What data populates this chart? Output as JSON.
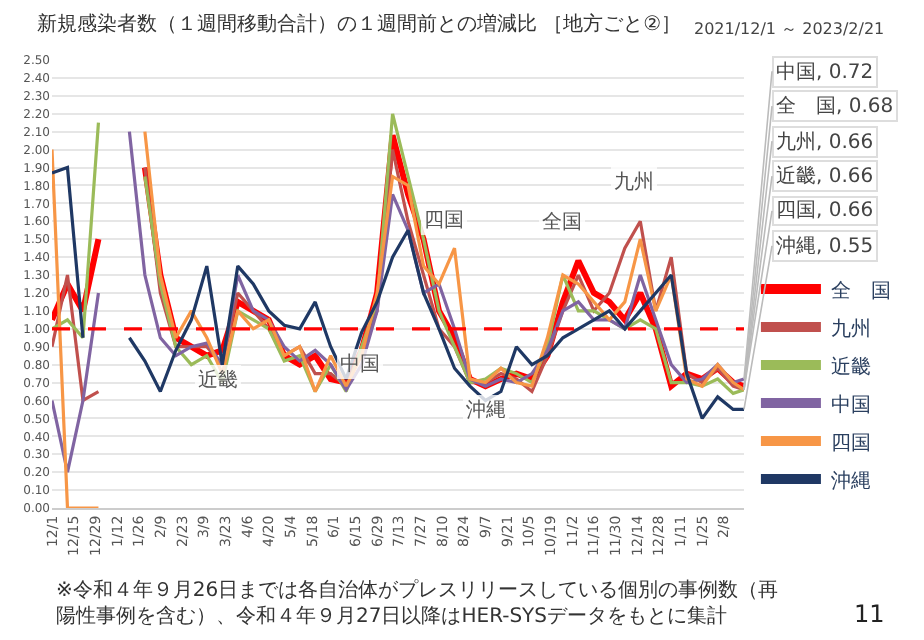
{
  "chart_data": {
    "type": "line",
    "title": "新規感染者数（１週間移動合計）の１週間前との増減比 ［地方ごと②］",
    "subtitle": "2021/12/1 ～ 2023/2/21",
    "x": [
      "2021-12-01",
      "2021-12-11",
      "2021-12-21",
      "2021-12-31",
      "2022-01-10",
      "2022-01-20",
      "2022-01-30",
      "2022-02-09",
      "2022-02-19",
      "2022-03-01",
      "2022-03-11",
      "2022-03-21",
      "2022-03-31",
      "2022-04-10",
      "2022-04-20",
      "2022-04-30",
      "2022-05-10",
      "2022-05-20",
      "2022-05-30",
      "2022-06-09",
      "2022-06-19",
      "2022-06-29",
      "2022-07-09",
      "2022-07-19",
      "2022-07-29",
      "2022-08-08",
      "2022-08-18",
      "2022-08-28",
      "2022-09-07",
      "2022-09-17",
      "2022-09-27",
      "2022-10-07",
      "2022-10-17",
      "2022-10-27",
      "2022-11-06",
      "2022-11-16",
      "2022-11-26",
      "2022-12-06",
      "2022-12-16",
      "2022-12-26",
      "2023-01-05",
      "2023-01-15",
      "2023-01-25",
      "2023-02-04",
      "2023-02-14",
      "2023-02-21"
    ],
    "series": [
      {
        "name": "全　国",
        "color": "#ff0000",
        "values": [
          1.05,
          1.25,
          1.1,
          1.5,
          null,
          null,
          1.9,
          1.3,
          0.95,
          0.9,
          0.85,
          0.88,
          1.15,
          1.1,
          1.05,
          0.85,
          0.8,
          0.85,
          0.72,
          0.7,
          0.88,
          1.2,
          2.08,
          1.75,
          1.5,
          1.1,
          0.95,
          0.72,
          0.68,
          0.72,
          0.75,
          0.72,
          0.85,
          1.15,
          1.38,
          1.2,
          1.15,
          1.05,
          1.2,
          1.0,
          0.68,
          0.75,
          0.72,
          0.78,
          0.7,
          0.68
        ]
      },
      {
        "name": "九州",
        "color": "#c0504d",
        "values": [
          0.9,
          1.3,
          0.6,
          0.65,
          null,
          null,
          1.9,
          1.2,
          0.9,
          0.9,
          0.9,
          0.8,
          1.2,
          1.1,
          1.0,
          0.85,
          0.9,
          0.75,
          0.75,
          0.68,
          0.88,
          1.1,
          2.0,
          1.6,
          1.3,
          1.0,
          0.9,
          0.7,
          0.7,
          0.75,
          0.72,
          0.65,
          0.85,
          1.1,
          1.3,
          1.1,
          1.2,
          1.45,
          1.6,
          1.1,
          1.4,
          0.75,
          0.7,
          0.78,
          0.68,
          0.66
        ]
      },
      {
        "name": "近畿",
        "color": "#9bbb59",
        "values": [
          1.0,
          1.05,
          0.95,
          2.15,
          null,
          null,
          1.85,
          1.25,
          0.9,
          0.8,
          0.85,
          0.7,
          1.1,
          1.05,
          1.0,
          0.82,
          0.85,
          0.65,
          0.8,
          0.65,
          0.9,
          1.15,
          2.2,
          1.85,
          1.5,
          1.1,
          0.9,
          0.7,
          0.72,
          0.78,
          0.75,
          0.7,
          0.9,
          1.3,
          1.1,
          1.1,
          1.05,
          1.0,
          1.05,
          1.0,
          0.7,
          0.7,
          0.68,
          0.72,
          0.64,
          0.66
        ]
      },
      {
        "name": "中国",
        "color": "#8064a2",
        "values": [
          0.6,
          0.2,
          0.6,
          1.2,
          null,
          2.1,
          1.3,
          0.95,
          0.85,
          0.9,
          0.92,
          0.8,
          1.3,
          1.1,
          1.05,
          0.9,
          0.82,
          0.88,
          0.8,
          0.66,
          0.8,
          1.1,
          1.75,
          1.55,
          1.2,
          1.25,
          1.0,
          0.72,
          0.68,
          0.72,
          0.7,
          0.75,
          0.88,
          1.1,
          1.15,
          1.05,
          1.05,
          1.0,
          1.3,
          1.05,
          0.8,
          0.7,
          0.72,
          0.8,
          0.7,
          0.72
        ]
      },
      {
        "name": "四国",
        "color": "#f79646",
        "values": [
          2.0,
          0,
          0,
          0,
          null,
          null,
          2.1,
          1.3,
          0.95,
          1.1,
          0.95,
          0.75,
          1.1,
          1.0,
          1.05,
          0.85,
          0.9,
          0.65,
          0.85,
          0.68,
          0.85,
          1.2,
          1.85,
          1.8,
          1.35,
          1.25,
          1.45,
          0.72,
          0.7,
          0.78,
          0.7,
          0.68,
          0.95,
          1.3,
          1.25,
          1.15,
          1.05,
          1.15,
          1.5,
          1.1,
          1.3,
          0.72,
          0.68,
          0.8,
          0.7,
          0.66
        ]
      },
      {
        "name": "沖縄",
        "color": "#1f3864",
        "values": [
          1.87,
          1.9,
          0.95,
          null,
          null,
          0.95,
          0.82,
          0.65,
          0.88,
          1.05,
          1.35,
          0.8,
          1.35,
          1.25,
          1.1,
          1.02,
          1.0,
          1.15,
          0.9,
          0.72,
          0.98,
          1.15,
          1.4,
          1.55,
          1.2,
          1.0,
          0.78,
          0.68,
          0.6,
          0.65,
          0.9,
          0.8,
          0.85,
          0.95,
          1.0,
          1.05,
          1.1,
          1.0,
          1.1,
          1.2,
          1.3,
          0.75,
          0.5,
          0.62,
          0.55,
          0.55
        ]
      }
    ],
    "ylim": [
      0,
      2.5
    ],
    "yticks": [
      {
        "value": 0,
        "label": "0.00"
      },
      {
        "value": 0.1,
        "label": "0.10"
      },
      {
        "value": 0.2,
        "label": "0.20"
      },
      {
        "value": 0.3,
        "label": "0.30"
      },
      {
        "value": 0.4,
        "label": "0.40"
      },
      {
        "value": 0.5,
        "label": "0.50"
      },
      {
        "value": 0.6,
        "label": "0.60"
      },
      {
        "value": 0.7,
        "label": "0.70"
      },
      {
        "value": 0.8,
        "label": "0.80"
      },
      {
        "value": 0.9,
        "label": "0.90"
      },
      {
        "value": 1.0,
        "label": "1.00"
      },
      {
        "value": 1.1,
        "label": "1.10"
      },
      {
        "value": 1.2,
        "label": "1.20"
      },
      {
        "value": 1.3,
        "label": "1.30"
      },
      {
        "value": 1.4,
        "label": "1.40"
      },
      {
        "value": 1.5,
        "label": "1.50"
      },
      {
        "value": 1.6,
        "label": "1.60"
      },
      {
        "value": 1.7,
        "label": "1.70"
      },
      {
        "value": 1.8,
        "label": "1.80"
      },
      {
        "value": 1.9,
        "label": "1.90"
      },
      {
        "value": 2.0,
        "label": "2.00"
      },
      {
        "value": 2.1,
        "label": "2.10"
      },
      {
        "value": 2.2,
        "label": "2.20"
      },
      {
        "value": 2.3,
        "label": "2.30"
      },
      {
        "value": 2.4,
        "label": "2.40"
      },
      {
        "value": 2.5,
        "label": "2.50"
      }
    ],
    "xlim": [
      "2021-12-01",
      "2023-02-21"
    ],
    "xticks": [
      {
        "value": "2021-12-01",
        "label": "12/1"
      },
      {
        "value": "2021-12-15",
        "label": "12/15"
      },
      {
        "value": "2021-12-29",
        "label": "12/29"
      },
      {
        "value": "2022-01-12",
        "label": "1/12"
      },
      {
        "value": "2022-01-26",
        "label": "1/26"
      },
      {
        "value": "2022-02-09",
        "label": "2/9"
      },
      {
        "value": "2022-02-23",
        "label": "2/23"
      },
      {
        "value": "2022-03-09",
        "label": "3/9"
      },
      {
        "value": "2022-03-23",
        "label": "3/23"
      },
      {
        "value": "2022-04-06",
        "label": "4/6"
      },
      {
        "value": "2022-04-20",
        "label": "4/20"
      },
      {
        "value": "2022-05-04",
        "label": "5/4"
      },
      {
        "value": "2022-05-18",
        "label": "5/18"
      },
      {
        "value": "2022-06-01",
        "label": "6/1"
      },
      {
        "value": "2022-06-15",
        "label": "6/15"
      },
      {
        "value": "2022-06-29",
        "label": "6/29"
      },
      {
        "value": "2022-07-13",
        "label": "7/13"
      },
      {
        "value": "2022-07-27",
        "label": "7/27"
      },
      {
        "value": "2022-08-10",
        "label": "8/10"
      },
      {
        "value": "2022-08-24",
        "label": "8/24"
      },
      {
        "value": "2022-09-07",
        "label": "9/7"
      },
      {
        "value": "2022-09-21",
        "label": "9/21"
      },
      {
        "value": "2022-10-05",
        "label": "10/5"
      },
      {
        "value": "2022-10-19",
        "label": "10/19"
      },
      {
        "value": "2022-11-02",
        "label": "11/2"
      },
      {
        "value": "2022-11-16",
        "label": "11/16"
      },
      {
        "value": "2022-11-30",
        "label": "11/30"
      },
      {
        "value": "2022-12-14",
        "label": "12/14"
      },
      {
        "value": "2022-12-28",
        "label": "12/28"
      },
      {
        "value": "2023-01-11",
        "label": "1/11"
      },
      {
        "value": "2023-01-25",
        "label": "1/25"
      },
      {
        "value": "2023-02-08",
        "label": "2/8"
      }
    ],
    "ref_lines": [
      {
        "axis": "y",
        "value": 1.0,
        "color": "#ff0000",
        "line_style": "dashed"
      }
    ],
    "grid": "y",
    "legend": "bottom right",
    "marker": "none",
    "line_style": "solid",
    "annotations": [
      {
        "text": "中国, 0.72",
        "x": "2023-02-21",
        "y": 0.72
      },
      {
        "text": "全　国, 0.68",
        "x": "2023-02-21",
        "y": 0.68
      },
      {
        "text": "九州, 0.66",
        "x": "2023-02-21",
        "y": 0.66
      },
      {
        "text": "近畿, 0.66",
        "x": "2023-02-21",
        "y": 0.66
      },
      {
        "text": "四国, 0.66",
        "x": "2023-02-21",
        "y": 0.66
      },
      {
        "text": "沖縄, 0.55",
        "x": "2023-02-21",
        "y": 0.55
      },
      "近畿",
      "中国",
      "四国",
      "沖縄",
      "全国",
      "九州",
      "※令和４年９月26日までは各自治体がプレスリリースしている個別の事例数（再陽性事例を含む）、令和４年９月27日以降はHER-SYSデータをもとに集計",
      "11"
    ]
  }
}
